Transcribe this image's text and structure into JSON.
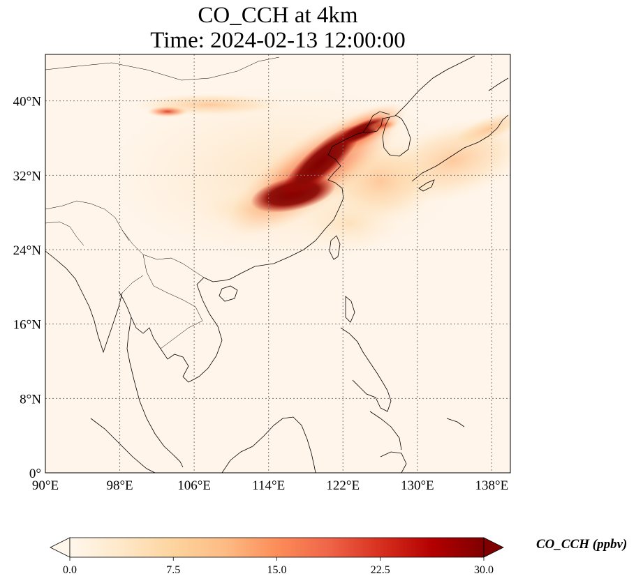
{
  "title": {
    "line1": "CO_CCH at 4km",
    "line2": "Time: 2024-02-13 12:00:00"
  },
  "map": {
    "extent": {
      "lon_min": 90,
      "lon_max": 140,
      "lat_min": 0,
      "lat_max": 45
    },
    "lon_ticks": [
      {
        "value": 90,
        "label": "90°E"
      },
      {
        "value": 98,
        "label": "98°E"
      },
      {
        "value": 106,
        "label": "106°E"
      },
      {
        "value": 114,
        "label": "114°E"
      },
      {
        "value": 122,
        "label": "122°E"
      },
      {
        "value": 130,
        "label": "130°E"
      },
      {
        "value": 138,
        "label": "138°E"
      }
    ],
    "lat_ticks": [
      {
        "value": 0,
        "label": "0°"
      },
      {
        "value": 8,
        "label": "8°N"
      },
      {
        "value": 16,
        "label": "16°N"
      },
      {
        "value": 24,
        "label": "24°N"
      },
      {
        "value": 32,
        "label": "32°N"
      },
      {
        "value": 40,
        "label": "40°N"
      }
    ],
    "gridlines": true,
    "background_color": "#fff5ea",
    "plumes": [
      {
        "name": "core-plume",
        "lon": 116.5,
        "lat": 30.0,
        "value": 30
      },
      {
        "name": "north-china-plume",
        "lon": 118.5,
        "lat": 33.5,
        "value": 30
      },
      {
        "name": "bohai-plume",
        "lon": 122.5,
        "lat": 36.5,
        "value": 28
      },
      {
        "name": "korea-tip",
        "lon": 124.8,
        "lat": 37.6,
        "value": 22
      },
      {
        "name": "east-sea-outflow",
        "lon": 128,
        "lat": 34,
        "value": 8
      },
      {
        "name": "japan-outflow",
        "lon": 135,
        "lat": 37,
        "value": 5
      },
      {
        "name": "mongolia-band",
        "lon": 106,
        "lat": 40,
        "value": 4
      },
      {
        "name": "south-china-outflow",
        "lon": 121,
        "lat": 27,
        "value": 6
      }
    ]
  },
  "colorbar": {
    "label": "CO_CCH (ppbv)",
    "min": 0,
    "max": 30,
    "extend": "both",
    "ticks": [
      {
        "value": 0,
        "label": "0.0"
      },
      {
        "value": 7.5,
        "label": "7.5"
      },
      {
        "value": 15,
        "label": "15.0"
      },
      {
        "value": 22.5,
        "label": "22.5"
      },
      {
        "value": 30,
        "label": "30.0"
      }
    ],
    "colors": [
      "#fff7ec",
      "#fee8c8",
      "#fdd49e",
      "#fdbb84",
      "#fc8d59",
      "#ef6548",
      "#d7301f",
      "#b30000",
      "#7f0000"
    ]
  }
}
